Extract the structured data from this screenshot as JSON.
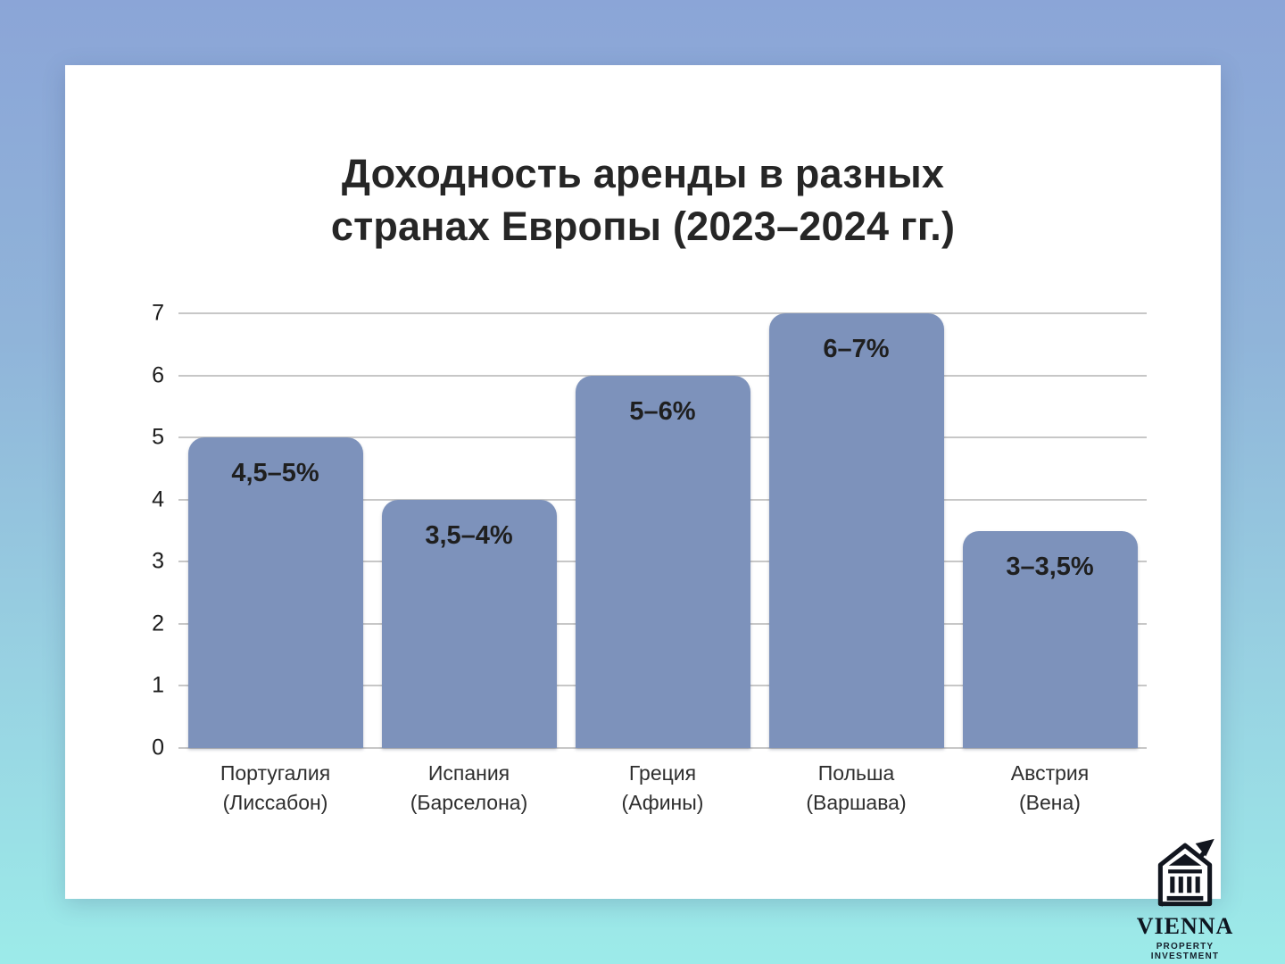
{
  "background": {
    "gradient_top": "#8ba5d7",
    "gradient_bottom": "#9cebe9",
    "card_color": "#ffffff"
  },
  "chart_data": {
    "type": "bar",
    "title": "Доходность аренды в разных странах Европы (2023–2024 гг.)",
    "title_lines": [
      "Доходность аренды в разных",
      "странах Европы (2023–2024 гг.)"
    ],
    "categories": [
      "Португалия (Лиссабон)",
      "Испания (Барселона)",
      "Греция (Афины)",
      "Польша (Варшава)",
      "Австрия (Вена)"
    ],
    "bars": [
      {
        "country": "Португалия",
        "city": "(Лиссабон)",
        "range_label": "4,5–5%",
        "value": 5
      },
      {
        "country": "Испания",
        "city": "(Барселона)",
        "range_label": "3,5–4%",
        "value": 4
      },
      {
        "country": "Греция",
        "city": "(Афины)",
        "range_label": "5–6%",
        "value": 6
      },
      {
        "country": "Польша",
        "city": "(Варшава)",
        "range_label": "6–7%",
        "value": 7
      },
      {
        "country": "Австрия",
        "city": "(Вена)",
        "range_label": "3–3,5%",
        "value": 3.5
      }
    ],
    "xlabel": "",
    "ylabel": "",
    "y_ticks": [
      0,
      1,
      2,
      3,
      4,
      5,
      6,
      7
    ],
    "ylim": [
      0,
      7
    ],
    "grid": true,
    "legend": false,
    "bar_color": "#7d92bb",
    "gridline_color": "#c7c7c7"
  },
  "logo": {
    "name": "VIENNA",
    "subtitle": "PROPERTY INVESTMENT",
    "icon": "bank-building-with-growth-arrow-icon",
    "color": "#12161f"
  }
}
